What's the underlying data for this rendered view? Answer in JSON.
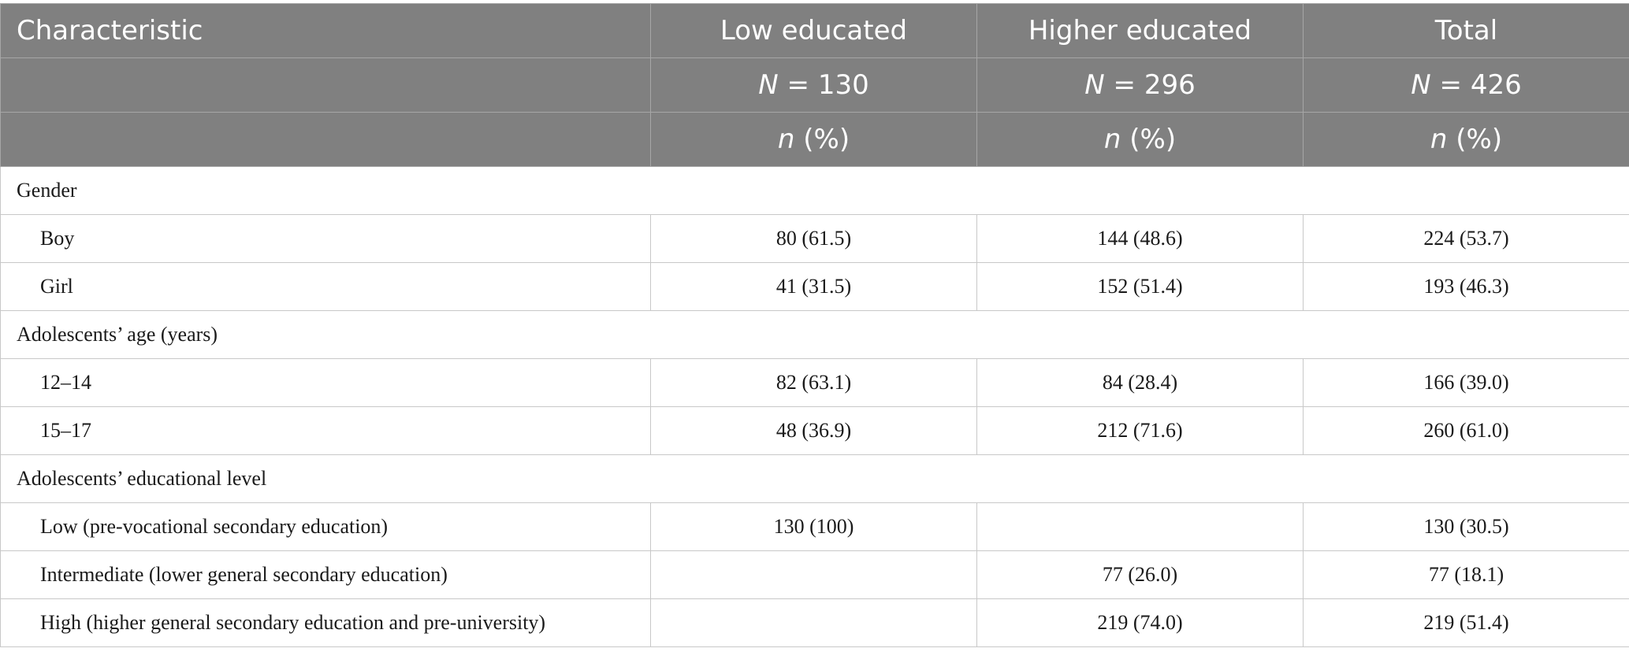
{
  "header": {
    "row1": [
      "Characteristic",
      "Low educated",
      "Higher educated",
      "Total"
    ],
    "row2": [
      {
        "italic": "N",
        "rest": " = 130"
      },
      {
        "italic": "N",
        "rest": " = 296"
      },
      {
        "italic": "N",
        "rest": " = 426"
      }
    ],
    "row3": [
      {
        "italic": "n",
        "rest": " (%)"
      },
      {
        "italic": "n",
        "rest": " (%)"
      },
      {
        "italic": "n",
        "rest": " (%)"
      }
    ]
  },
  "sections": [
    {
      "title": "Gender",
      "rows": [
        {
          "label": "Boy",
          "low": "80 (61.5)",
          "higher": "144 (48.6)",
          "total": "224 (53.7)"
        },
        {
          "label": "Girl",
          "low": "41 (31.5)",
          "higher": "152 (51.4)",
          "total": "193 (46.3)"
        }
      ]
    },
    {
      "title": "Adolescents’ age (years)",
      "rows": [
        {
          "label": "12–14",
          "low": "82 (63.1)",
          "higher": "84 (28.4)",
          "total": "166 (39.0)"
        },
        {
          "label": "15–17",
          "low": "48 (36.9)",
          "higher": "212 (71.6)",
          "total": "260 (61.0)"
        }
      ]
    },
    {
      "title": "Adolescents’ educational level",
      "rows": [
        {
          "label": "Low (pre-vocational secondary education)",
          "low": "130 (100)",
          "higher": "",
          "total": "130 (30.5)"
        },
        {
          "label": "Intermediate (lower general secondary education)",
          "low": "",
          "higher": "77 (26.0)",
          "total": "77 (18.1)"
        },
        {
          "label": "High (higher general secondary education and pre-university)",
          "low": "",
          "higher": "219 (74.0)",
          "total": "219 (51.4)"
        }
      ]
    }
  ]
}
